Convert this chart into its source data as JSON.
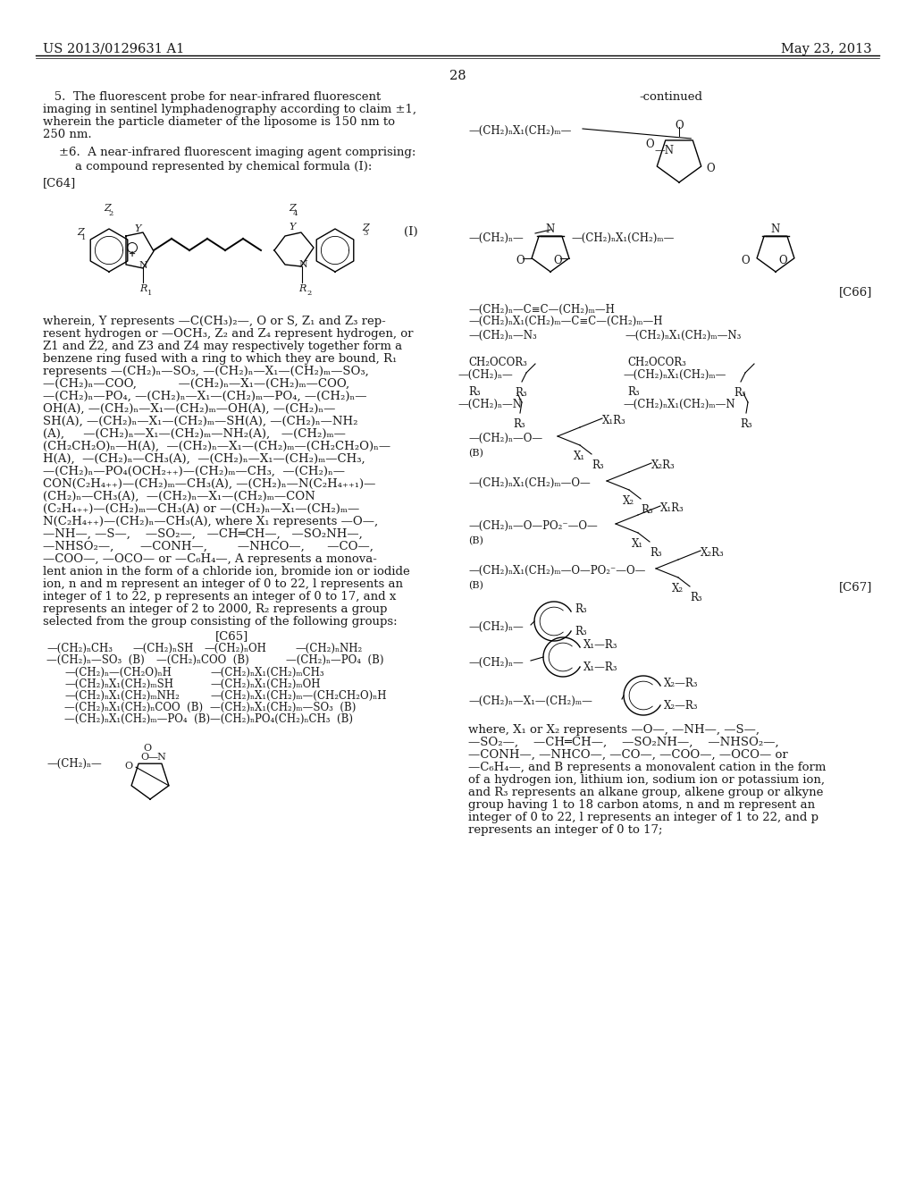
{
  "background_color": "#ffffff",
  "text_color": "#1a1a1a",
  "page_header_left": "US 2013/0129631 A1",
  "page_header_right": "May 23, 2013",
  "page_number": "28"
}
